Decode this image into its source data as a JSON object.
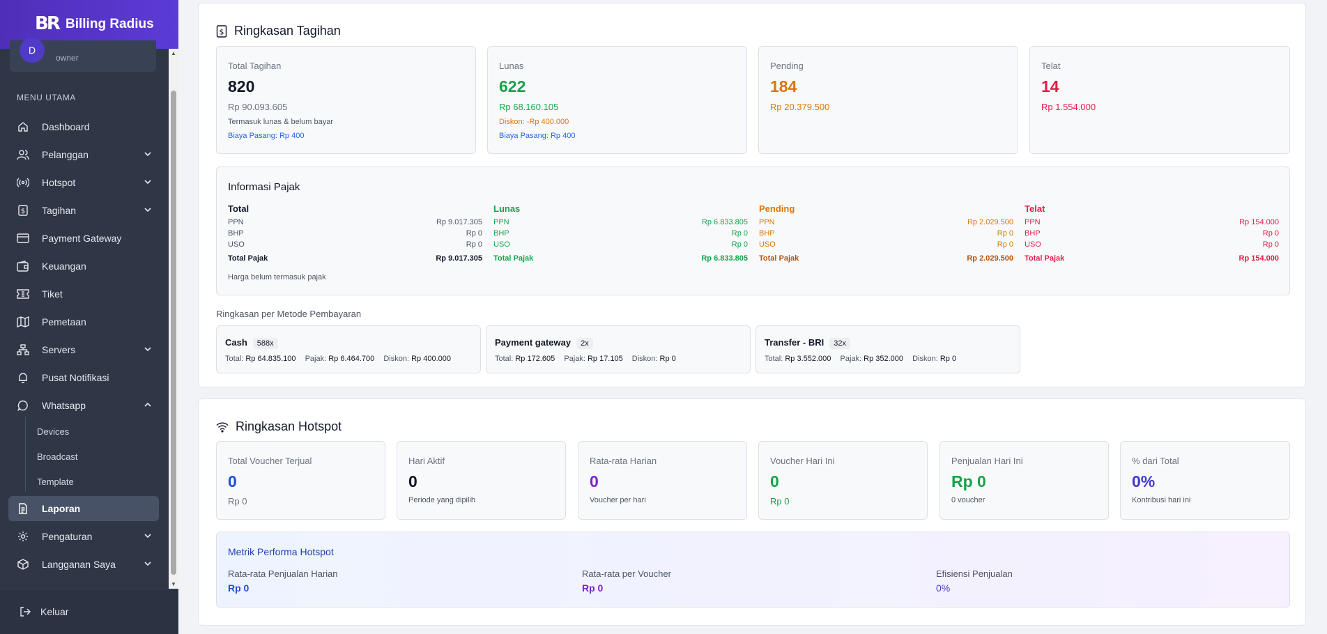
{
  "app": {
    "title": "Billing Radius",
    "logo": "BR"
  },
  "user": {
    "initial": "D",
    "role": "owner"
  },
  "sidebar": {
    "menu_title": "MENU UTAMA",
    "items": [
      {
        "label": "Dashboard",
        "icon": "home-icon"
      },
      {
        "label": "Pelanggan",
        "icon": "users-icon"
      },
      {
        "label": "Hotspot",
        "icon": "broadcast-icon"
      },
      {
        "label": "Tagihan",
        "icon": "invoice-icon"
      },
      {
        "label": "Payment Gateway",
        "icon": "credit-card-icon"
      },
      {
        "label": "Keuangan",
        "icon": "wallet-icon"
      },
      {
        "label": "Tiket",
        "icon": "ticket-icon"
      },
      {
        "label": "Pemetaan",
        "icon": "map-icon"
      },
      {
        "label": "Servers",
        "icon": "server-icon"
      },
      {
        "label": "Pusat Notifikasi",
        "icon": "bell-icon"
      },
      {
        "label": "Whatsapp",
        "icon": "chat-icon"
      },
      {
        "label": "Laporan",
        "icon": "report-icon"
      },
      {
        "label": "Pengaturan",
        "icon": "gear-icon"
      },
      {
        "label": "Langganan Saya",
        "icon": "package-icon"
      }
    ],
    "whatsapp_sub": [
      "Devices",
      "Broadcast",
      "Template"
    ],
    "logout": "Keluar"
  },
  "tagihan": {
    "title": "Ringkasan Tagihan",
    "cards": [
      {
        "label": "Total Tagihan",
        "count": "820",
        "amount": "Rp 90.093.605",
        "note": "Termasuk lunas & belum bayar",
        "fee": "Biaya Pasang: Rp 400"
      },
      {
        "label": "Lunas",
        "count": "622",
        "amount": "Rp 68.160.105",
        "note": "Diskon: -Rp 400.000",
        "fee": "Biaya Pasang: Rp 400"
      },
      {
        "label": "Pending",
        "count": "184",
        "amount": "Rp 20.379.500"
      },
      {
        "label": "Telat",
        "count": "14",
        "amount": "Rp 1.554.000"
      }
    ],
    "pajak": {
      "title": "Informasi Pajak",
      "columns": [
        {
          "title": "Total",
          "ppn": "Rp 9.017.305",
          "bhp": "Rp 0",
          "uso": "Rp 0",
          "total": "Rp 9.017.305"
        },
        {
          "title": "Lunas",
          "ppn": "Rp 6.833.805",
          "bhp": "Rp 0",
          "uso": "Rp 0",
          "total": "Rp 6.833.805"
        },
        {
          "title": "Pending",
          "ppn": "Rp 2.029.500",
          "bhp": "Rp 0",
          "uso": "Rp 0",
          "total": "Rp 2.029.500"
        },
        {
          "title": "Telat",
          "ppn": "Rp 154.000",
          "bhp": "Rp 0",
          "uso": "Rp 0",
          "total": "Rp 154.000"
        }
      ],
      "row_labels": {
        "ppn": "PPN",
        "bhp": "BHP",
        "uso": "USO",
        "total": "Total Pajak"
      },
      "note": "Harga belum termasuk pajak"
    },
    "metode_title": "Ringkasan per Metode Pembayaran",
    "metode": [
      {
        "name": "Cash",
        "count": "588x",
        "total": "Rp 64.835.100",
        "pajak": "Rp 6.464.700",
        "diskon": "Rp 400.000"
      },
      {
        "name": "Payment gateway",
        "count": "2x",
        "total": "Rp 172.605",
        "pajak": "Rp 17.105",
        "diskon": "Rp 0"
      },
      {
        "name": "Transfer - BRI",
        "count": "32x",
        "total": "Rp 3.552.000",
        "pajak": "Rp 352.000",
        "diskon": "Rp 0"
      }
    ],
    "metode_labels": {
      "total": "Total:",
      "pajak": "Pajak:",
      "diskon": "Diskon:"
    }
  },
  "hotspot": {
    "title": "Ringkasan Hotspot",
    "cards": [
      {
        "label": "Total Voucher Terjual",
        "value": "0",
        "sub": "Rp 0"
      },
      {
        "label": "Hari Aktif",
        "value": "0",
        "sub": "Periode yang dipilih"
      },
      {
        "label": "Rata-rata Harian",
        "value": "0",
        "sub": "Voucher per hari"
      },
      {
        "label": "Voucher Hari Ini",
        "value": "0",
        "sub": "Rp 0"
      },
      {
        "label": "Penjualan Hari Ini",
        "value": "Rp 0",
        "sub": "0 voucher"
      },
      {
        "label": "% dari Total",
        "value": "0%",
        "sub": "Kontribusi hari ini"
      }
    ],
    "metrik": {
      "title": "Metrik Performa Hotspot",
      "items": [
        {
          "label": "Rata-rata Penjualan Harian",
          "value": "Rp 0"
        },
        {
          "label": "Rata-rata per Voucher",
          "value": "Rp 0"
        },
        {
          "label": "Efisiensi Penjualan",
          "value": "0%"
        }
      ]
    }
  }
}
